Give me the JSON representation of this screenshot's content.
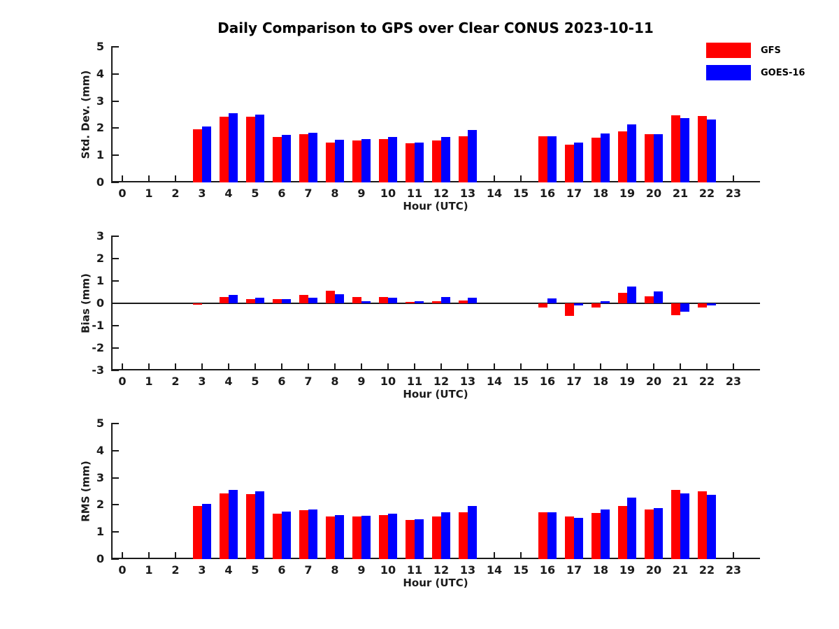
{
  "title": "Daily Comparison to GPS over Clear CONUS 2023-10-11",
  "colors": {
    "gfs_red": "#ff0000",
    "goes_blue": "#0000ff",
    "axis": "#1a1a1a"
  },
  "legend": {
    "position": "top-right",
    "items": [
      {
        "label": "GFS",
        "color": "#ff0000"
      },
      {
        "label": "GOES-16",
        "color": "#0000ff"
      }
    ]
  },
  "chart_data": [
    {
      "type": "bar",
      "title": "",
      "ylabel": "Std. Dev. (mm)",
      "xlabel": "Hour (UTC)",
      "ylim": [
        0,
        5
      ],
      "yticks": [
        0,
        1,
        2,
        3,
        4,
        5
      ],
      "grid": false,
      "categories": [
        "0",
        "1",
        "2",
        "3",
        "4",
        "5",
        "6",
        "7",
        "8",
        "9",
        "10",
        "11",
        "12",
        "13",
        "14",
        "15",
        "16",
        "17",
        "18",
        "19",
        "20",
        "21",
        "22",
        "23"
      ],
      "series": [
        {
          "name": "GFS",
          "color": "#ff0000",
          "values": [
            null,
            null,
            null,
            1.97,
            2.41,
            2.41,
            1.67,
            1.78,
            1.48,
            1.55,
            1.6,
            1.44,
            1.55,
            1.7,
            null,
            null,
            1.7,
            1.39,
            1.64,
            1.88,
            1.79,
            2.47,
            2.44,
            null
          ]
        },
        {
          "name": "GOES-16",
          "color": "#0000ff",
          "values": [
            null,
            null,
            null,
            2.05,
            2.54,
            2.51,
            1.74,
            1.82,
            1.57,
            1.59,
            1.67,
            1.46,
            1.68,
            1.94,
            null,
            null,
            1.71,
            1.48,
            1.8,
            2.14,
            1.79,
            2.36,
            2.33,
            null
          ]
        }
      ]
    },
    {
      "type": "bar",
      "title": "",
      "ylabel": "Bias (mm)",
      "xlabel": "Hour (UTC)",
      "ylim": [
        -3,
        3
      ],
      "yticks": [
        -3,
        -2,
        -1,
        0,
        1,
        2,
        3
      ],
      "grid": false,
      "zero_line": true,
      "categories": [
        "0",
        "1",
        "2",
        "3",
        "4",
        "5",
        "6",
        "7",
        "8",
        "9",
        "10",
        "11",
        "12",
        "13",
        "14",
        "15",
        "16",
        "17",
        "18",
        "19",
        "20",
        "21",
        "22",
        "23"
      ],
      "series": [
        {
          "name": "GFS",
          "color": "#ff0000",
          "values": [
            null,
            null,
            null,
            -0.07,
            0.28,
            0.2,
            0.18,
            0.36,
            0.57,
            0.28,
            0.28,
            0.05,
            0.09,
            0.12,
            null,
            null,
            -0.18,
            -0.57,
            -0.2,
            0.46,
            0.32,
            -0.54,
            -0.2,
            null
          ]
        },
        {
          "name": "GOES-16",
          "color": "#0000ff",
          "values": [
            null,
            null,
            null,
            0,
            0.38,
            0.25,
            0.2,
            0.24,
            0.42,
            0.1,
            0.24,
            0.1,
            0.28,
            0.26,
            null,
            null,
            0.21,
            -0.09,
            0.09,
            0.74,
            0.52,
            -0.38,
            -0.1,
            null
          ]
        }
      ]
    },
    {
      "type": "bar",
      "title": "",
      "ylabel": "RMS (mm)",
      "xlabel": "Hour (UTC)",
      "ylim": [
        0,
        5
      ],
      "yticks": [
        0,
        1,
        2,
        3,
        4,
        5
      ],
      "grid": false,
      "categories": [
        "0",
        "1",
        "2",
        "3",
        "4",
        "5",
        "6",
        "7",
        "8",
        "9",
        "10",
        "11",
        "12",
        "13",
        "14",
        "15",
        "16",
        "17",
        "18",
        "19",
        "20",
        "21",
        "22",
        "23"
      ],
      "series": [
        {
          "name": "GFS",
          "color": "#ff0000",
          "values": [
            null,
            null,
            null,
            1.97,
            2.41,
            2.4,
            1.67,
            1.8,
            1.57,
            1.57,
            1.62,
            1.44,
            1.58,
            1.72,
            null,
            null,
            1.72,
            1.56,
            1.7,
            1.96,
            1.84,
            2.54,
            2.49,
            null
          ]
        },
        {
          "name": "GOES-16",
          "color": "#0000ff",
          "values": [
            null,
            null,
            null,
            2.03,
            2.56,
            2.51,
            1.74,
            1.82,
            1.62,
            1.6,
            1.67,
            1.47,
            1.72,
            1.96,
            null,
            null,
            1.72,
            1.52,
            1.84,
            2.27,
            1.87,
            2.43,
            2.37,
            null
          ]
        }
      ]
    }
  ]
}
